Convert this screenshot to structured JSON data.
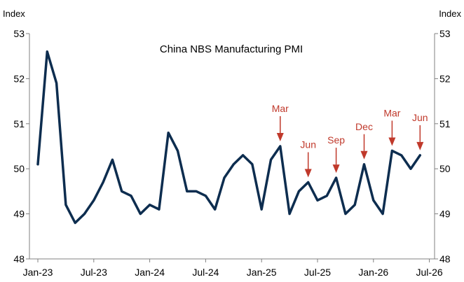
{
  "chart_data": {
    "type": "line",
    "title": "China NBS Manufacturing PMI",
    "ylabel_left": "Index",
    "ylabel_right": "Index",
    "ylim": [
      48,
      53
    ],
    "yticks": [
      48,
      49,
      50,
      51,
      52,
      53
    ],
    "xticks": [
      "Jan-23",
      "Jul-23",
      "Jan-24",
      "Jul-24",
      "Jan-25",
      "Jul-25",
      "Jan-26",
      "Jul-26"
    ],
    "x_start": "Jan-23",
    "grid": false,
    "series": [
      {
        "color": "#0d2d4f",
        "values": [
          50.1,
          52.6,
          51.9,
          49.2,
          48.8,
          49.0,
          49.3,
          49.7,
          50.2,
          49.5,
          49.4,
          49.0,
          49.2,
          49.1,
          50.8,
          50.4,
          49.5,
          49.5,
          49.4,
          49.1,
          49.8,
          50.1,
          50.3,
          50.1,
          49.1,
          50.2,
          50.5,
          49.0,
          49.5,
          49.7,
          49.3,
          49.4,
          49.8,
          49.0,
          49.2,
          50.1,
          49.3,
          49.0,
          50.4,
          50.3,
          50.0,
          50.3
        ]
      }
    ],
    "annotations": [
      {
        "label": "Mar",
        "index": 26,
        "color": "#c0392b"
      },
      {
        "label": "Jun",
        "index": 29,
        "color": "#c0392b"
      },
      {
        "label": "Sep",
        "index": 32,
        "color": "#c0392b"
      },
      {
        "label": "Dec",
        "index": 35,
        "color": "#c0392b"
      },
      {
        "label": "Mar",
        "index": 38,
        "color": "#c0392b"
      },
      {
        "label": "Jun",
        "index": 41,
        "color": "#c0392b"
      }
    ]
  }
}
